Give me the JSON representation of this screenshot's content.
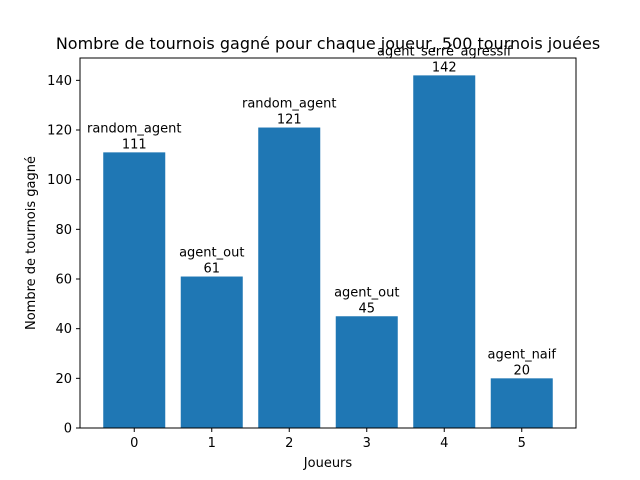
{
  "chart_data": {
    "type": "bar",
    "title": "Nombre de tournois gagné pour chaque joueur, 500 tournois jouées",
    "xlabel": "Joueurs",
    "ylabel": "Nombre de tournois gagné",
    "categories": [
      "0",
      "1",
      "2",
      "3",
      "4",
      "5"
    ],
    "values": [
      111,
      61,
      121,
      45,
      142,
      20
    ],
    "bar_labels": [
      "random_agent",
      "agent_out",
      "random_agent",
      "agent_out",
      "agent_serré_agressif",
      "agent_naif"
    ],
    "yticks": [
      0,
      20,
      40,
      60,
      80,
      100,
      120,
      140
    ],
    "ylim": [
      0,
      149
    ],
    "grid": false,
    "bar_color": "#1f77b4"
  }
}
